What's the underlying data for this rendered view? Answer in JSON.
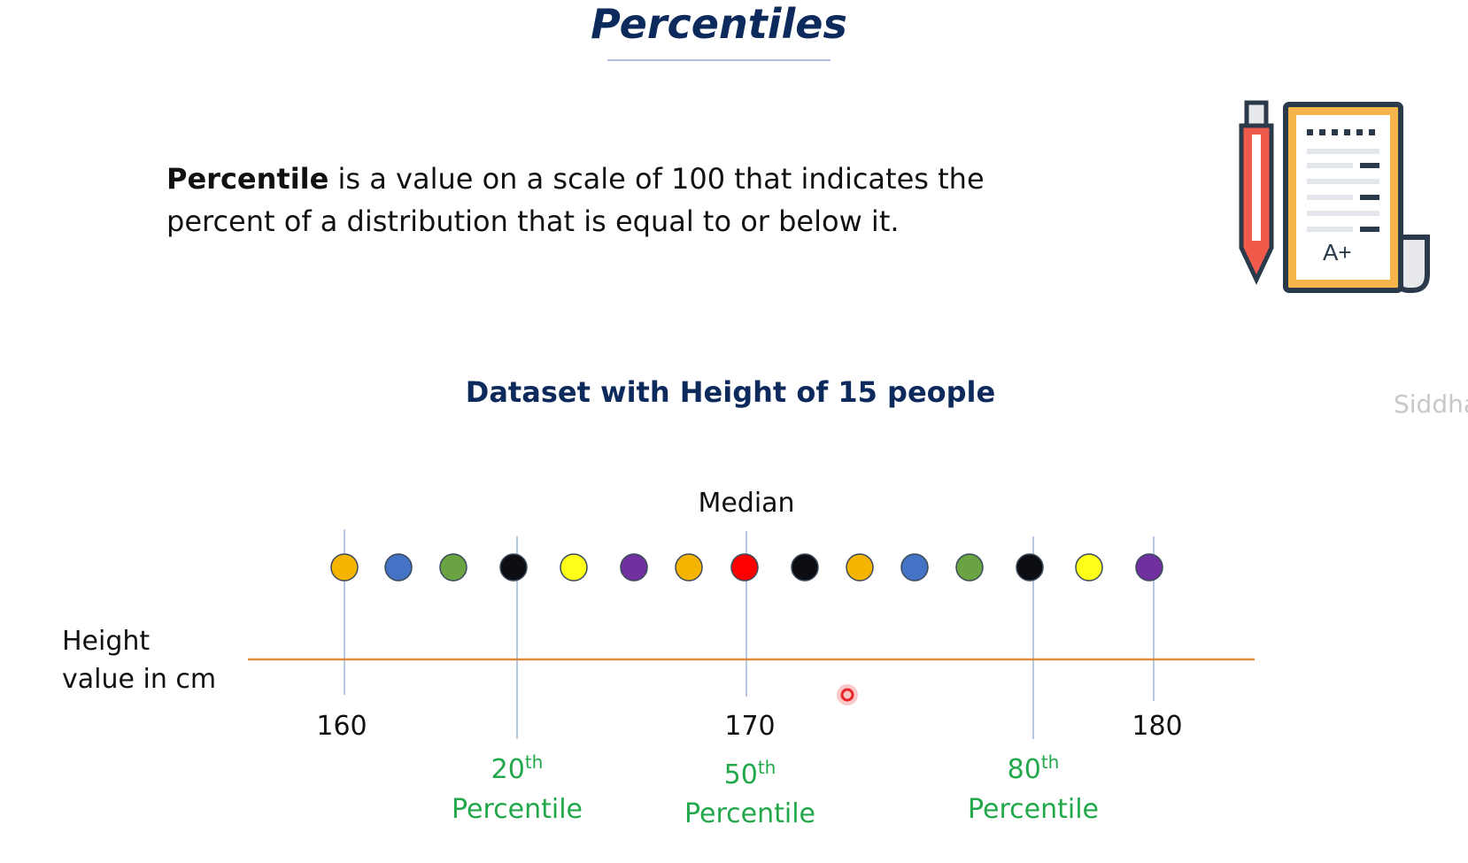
{
  "slide": {
    "title": "Percentiles",
    "definition_term": "Percentile",
    "definition_line1_rest": " is a value on a scale of 100 that indicates the",
    "definition_line2": "percent of a distribution that is equal to or below it.",
    "watermark": "Siddha"
  },
  "diagram": {
    "title": "Dataset with Height of 15 people",
    "axis_label_line1": "Height",
    "axis_label_line2": "value in cm",
    "median_label": "Median",
    "ticks": [
      "160",
      "170",
      "180"
    ],
    "points": [
      {
        "color": "#f5b400"
      },
      {
        "color": "#4472c4"
      },
      {
        "color": "#6aa342"
      },
      {
        "color": "#0d0d14"
      },
      {
        "color": "#ffff1a"
      },
      {
        "color": "#7030a0"
      },
      {
        "color": "#f5b400"
      },
      {
        "color": "#ff0000"
      },
      {
        "color": "#0d0d14"
      },
      {
        "color": "#f5b400"
      },
      {
        "color": "#4472c4"
      },
      {
        "color": "#6aa342"
      },
      {
        "color": "#0d0d14"
      },
      {
        "color": "#ffff1a"
      },
      {
        "color": "#7030a0"
      }
    ],
    "percentiles": [
      {
        "number": "20",
        "suffix": "th",
        "word": "Percentile"
      },
      {
        "number": "50",
        "suffix": "th",
        "word": "Percentile"
      },
      {
        "number": "80",
        "suffix": "th",
        "word": "Percentile"
      }
    ],
    "colors": {
      "axis": "#e08a3c",
      "guide": "#9db7d6",
      "percentile": "#22a84a",
      "title": "#0d2a5c",
      "cursor": "#e8262a"
    }
  },
  "icon": {
    "name": "pencil-and-graded-paper-icon",
    "grade": "A+"
  }
}
